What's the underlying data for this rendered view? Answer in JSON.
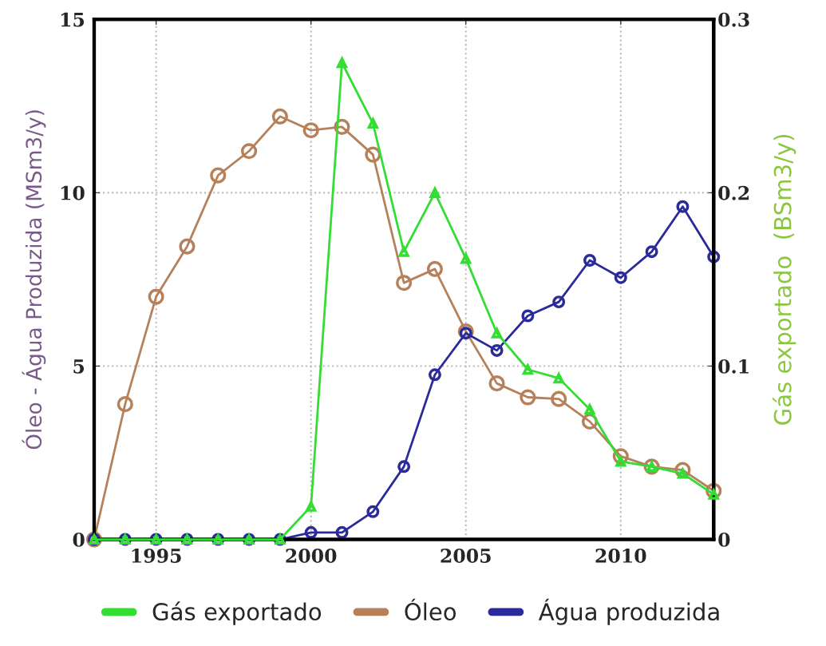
{
  "chart_data": {
    "type": "line",
    "ylabel": "Óleo - Água Produzida (MSm3/y)",
    "y2label": "Gás exportado  (BSm3/y)",
    "x": [
      1993,
      1994,
      1995,
      1996,
      1997,
      1998,
      1999,
      2000,
      2001,
      2002,
      2003,
      2004,
      2005,
      2006,
      2007,
      2008,
      2009,
      2010,
      2011,
      2012,
      2013
    ],
    "series": [
      {
        "name": "Gás exportado",
        "color": "#33dd33",
        "axis": "y2",
        "marker": "triangle",
        "values": [
          0,
          0,
          0,
          0,
          0,
          0,
          0,
          0.019,
          0.275,
          0.24,
          0.166,
          0.2,
          0.162,
          0.119,
          0.098,
          0.093,
          0.075,
          0.045,
          0.042,
          0.038,
          0.026
        ]
      },
      {
        "name": "Óleo",
        "color": "#b5805a",
        "marker": "circle",
        "values": [
          0,
          3.9,
          7.0,
          8.45,
          10.5,
          11.2,
          12.2,
          11.8,
          11.9,
          11.1,
          7.4,
          7.8,
          6.0,
          4.5,
          4.1,
          4.05,
          3.4,
          2.4,
          2.1,
          2.0,
          1.4
        ]
      },
      {
        "name": "Água produzida",
        "color": "#2a2a9a",
        "marker": "circle",
        "values": [
          0,
          0,
          0,
          0,
          0,
          0,
          0,
          0.2,
          0.2,
          0.8,
          2.1,
          4.75,
          5.95,
          5.45,
          6.45,
          6.85,
          8.05,
          7.55,
          8.3,
          9.6,
          8.15
        ]
      }
    ],
    "xlim": [
      1993,
      2013
    ],
    "xticks": [
      1995,
      2000,
      2005,
      2010
    ],
    "ylim": [
      0,
      15
    ],
    "yticks": [
      0,
      5,
      10,
      15
    ],
    "y2lim": [
      0,
      0.3
    ],
    "y2ticks": [
      0,
      0.1,
      0.2,
      0.3
    ],
    "grid": true,
    "legend": "bottom",
    "line_style": "solid"
  }
}
